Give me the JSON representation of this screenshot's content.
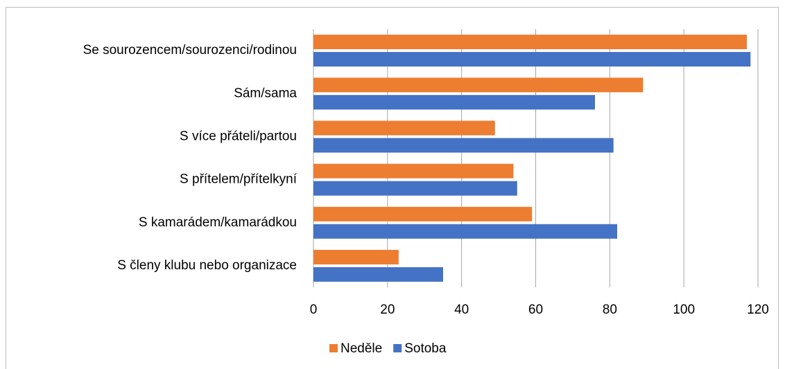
{
  "chart_data": {
    "type": "hbar",
    "categories": [
      "Se sourozencem/sourozenci/rodinou",
      "Sám/sama",
      "S více přáteli/partou",
      "S přítelem/přítelkyní",
      "S kamarádem/kamarádkou",
      "S členy klubu nebo organizace"
    ],
    "series": [
      {
        "name": "Neděle",
        "color": "#ed7d31",
        "values": [
          117,
          89,
          49,
          54,
          59,
          23
        ]
      },
      {
        "name": "Sotoba",
        "color": "#4472c4",
        "values": [
          118,
          76,
          81,
          55,
          82,
          35
        ]
      }
    ],
    "xlim": [
      0,
      120
    ],
    "xticks": [
      0,
      20,
      40,
      60,
      80,
      100,
      120
    ],
    "grid": true,
    "legend": "bottom"
  }
}
